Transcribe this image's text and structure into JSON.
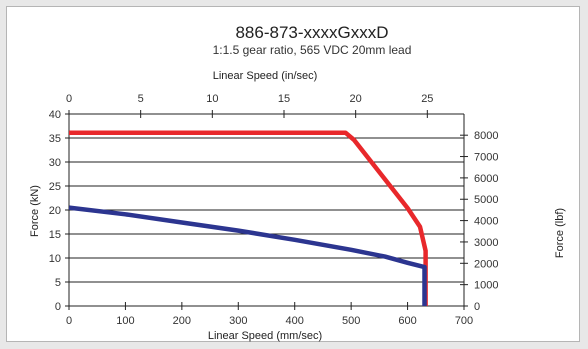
{
  "chart_data": {
    "type": "line",
    "title": "886-873-xxxxGxxxD",
    "subtitle": "1:1.5 gear ratio, 565 VDC 20mm lead",
    "xlabel": "Linear Speed (mm/sec)",
    "x2label": "Linear Speed (in/sec)",
    "ylabel": "Force (kN)",
    "y2label": "Force (lbf)",
    "xlim": [
      0,
      700
    ],
    "ylim": [
      0,
      40
    ],
    "x2lim": [
      0,
      27.5591
    ],
    "y2lim": [
      0,
      8992.4
    ],
    "x_ticks": [
      0,
      100,
      200,
      300,
      400,
      500,
      600,
      700
    ],
    "y_ticks": [
      0,
      5,
      10,
      15,
      20,
      25,
      30,
      35,
      40
    ],
    "x2_ticks": [
      0,
      5,
      10,
      15,
      20,
      25
    ],
    "y2_ticks": [
      0,
      1000,
      2000,
      3000,
      4000,
      5000,
      6000,
      7000,
      8000
    ],
    "grid": "horizontal",
    "legend": "none",
    "series": [
      {
        "color": "#e8282b",
        "x": [
          0,
          490,
          505,
          600,
          622,
          632,
          632
        ],
        "y": [
          36.1,
          36.1,
          34.6,
          20.4,
          16.5,
          11.5,
          0
        ]
      },
      {
        "color": "#2c3590",
        "x": [
          0,
          100,
          200,
          300,
          400,
          500,
          560,
          600,
          630,
          630
        ],
        "y": [
          20.5,
          19.1,
          17.4,
          15.7,
          13.8,
          11.7,
          10.3,
          9.0,
          8.1,
          0
        ]
      }
    ]
  }
}
